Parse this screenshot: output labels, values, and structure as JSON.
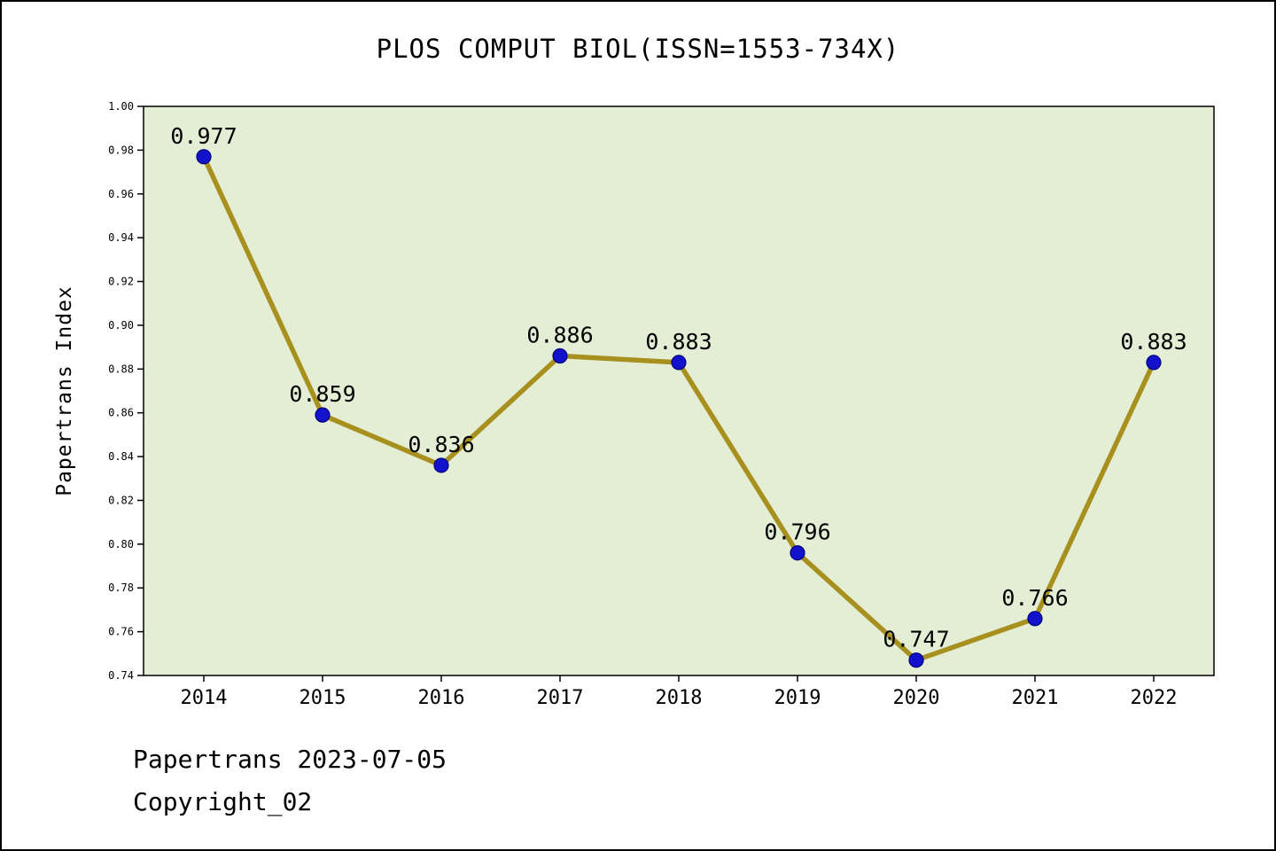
{
  "page": {
    "title": "PLOS COMPUT BIOL(ISSN=1553-734X)",
    "footer_line1": "Papertrans 2023-07-05",
    "footer_line2": "Copyright_02"
  },
  "chart_data": {
    "type": "line",
    "title": "PLOS COMPUT BIOL(ISSN=1553-734X)",
    "x": [
      "2014",
      "2015",
      "2016",
      "2017",
      "2018",
      "2019",
      "2020",
      "2021",
      "2022"
    ],
    "values": [
      0.977,
      0.859,
      0.836,
      0.886,
      0.883,
      0.796,
      0.747,
      0.766,
      0.883
    ],
    "labels": [
      "0.977",
      "0.859",
      "0.836",
      "0.886",
      "0.883",
      "0.796",
      "0.747",
      "0.766",
      "0.883"
    ],
    "xlabel": "",
    "ylabel": "Papertrans Index",
    "ylim": [
      0.74,
      1.0
    ],
    "ytick_step": 0.02,
    "grid": false,
    "legend": "none",
    "colors": {
      "line": "#a8901f",
      "marker": "#1212cc",
      "marker_edge": "#00007a",
      "plot_bg": "#e3eed5",
      "axis": "#000000"
    }
  }
}
